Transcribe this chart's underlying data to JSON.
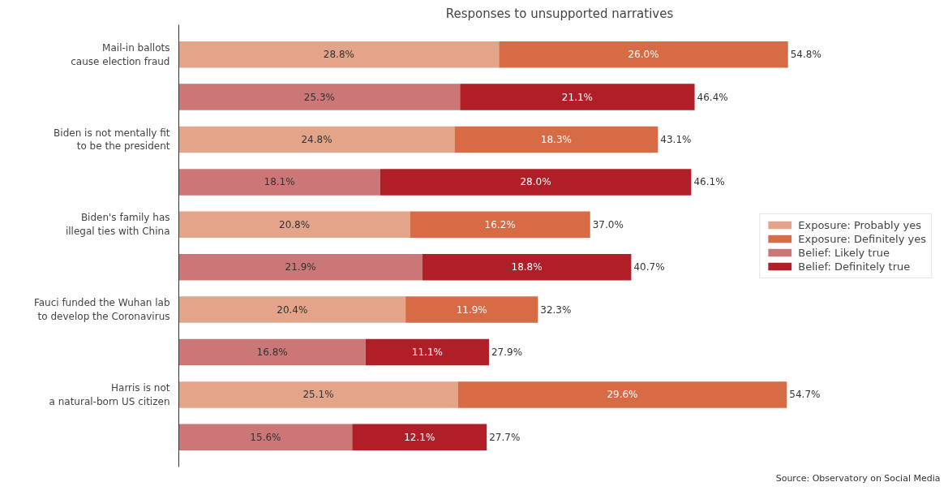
{
  "chart_data": {
    "type": "bar",
    "orientation": "horizontal",
    "stacked": true,
    "title": "Responses to unsupported narratives",
    "categories": [
      "Mail-in ballots\ncause election fraud",
      null,
      "Biden is not mentally fit\nto be the president",
      null,
      "Biden's family has\nillegal ties with China",
      null,
      "Fauci funded the Wuhan lab\nto develop the Coronavirus",
      null,
      "Harris is not\na natural-born US citizen",
      null
    ],
    "series": [
      {
        "name": "Exposure: Probably yes",
        "color": "#e4a48a",
        "values": [
          28.8,
          null,
          24.8,
          null,
          20.8,
          null,
          20.4,
          null,
          25.1,
          null
        ],
        "value_labels": [
          "28.8%",
          null,
          "24.8%",
          null,
          "20.8%",
          null,
          "20.4%",
          null,
          "25.1%",
          null
        ]
      },
      {
        "name": "Exposure: Definitely yes",
        "color": "#d66b45",
        "values": [
          26.0,
          null,
          18.3,
          null,
          16.2,
          null,
          11.9,
          null,
          29.6,
          null
        ],
        "value_labels": [
          "26.0%",
          null,
          "18.3%",
          null,
          "16.2%",
          null,
          "11.9%",
          null,
          "29.6%",
          null
        ]
      },
      {
        "name": "Belief: Likely true",
        "color": "#cc7777",
        "values": [
          null,
          25.3,
          null,
          18.1,
          null,
          21.9,
          null,
          16.8,
          null,
          15.6
        ],
        "value_labels": [
          null,
          "25.3%",
          null,
          "18.1%",
          null,
          "21.9%",
          null,
          "16.8%",
          null,
          "15.6%"
        ]
      },
      {
        "name": "Belief: Definitely true",
        "color": "#b01e27",
        "values": [
          null,
          21.1,
          null,
          28.0,
          null,
          18.8,
          null,
          11.1,
          null,
          12.1
        ],
        "value_labels": [
          null,
          "21.1%",
          null,
          "28.0%",
          null,
          "18.8%",
          null,
          "11.1%",
          null,
          "12.1%"
        ]
      }
    ],
    "totals": [
      "54.8%",
      "46.4%",
      "43.1%",
      "46.1%",
      "37.0%",
      "40.7%",
      "32.3%",
      "27.9%",
      "54.7%",
      "27.7%"
    ],
    "legend": "right",
    "grid": false,
    "annotations": [
      "Source: Observatory on Social Media"
    ]
  }
}
